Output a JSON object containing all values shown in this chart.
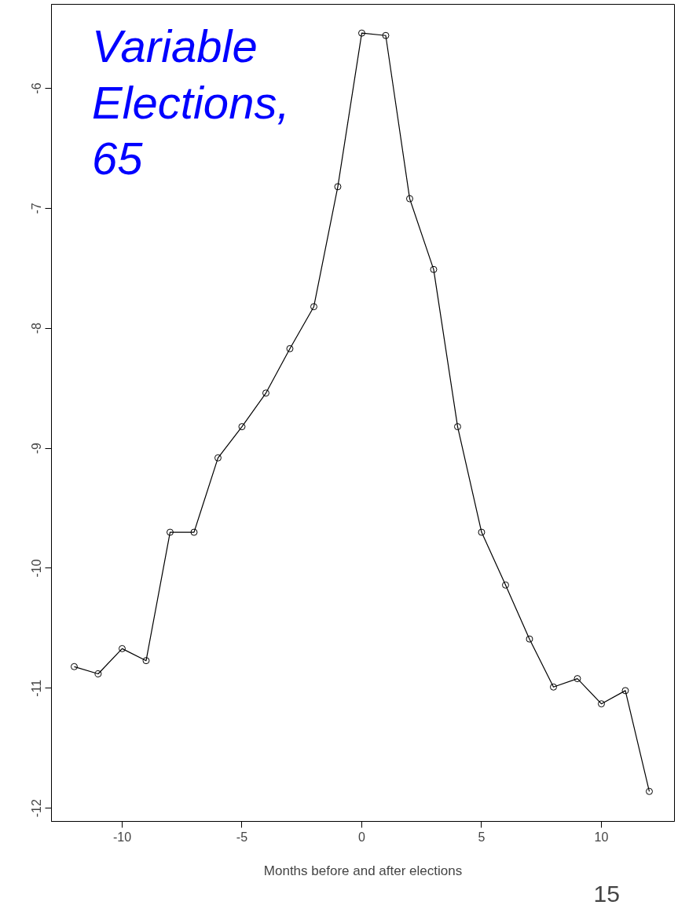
{
  "chart_data": {
    "type": "line",
    "title": "Variable Elections, 65",
    "xlabel": "Months before and after elections",
    "x": [
      -12,
      -11,
      -10,
      -9,
      -8,
      -7,
      -6,
      -5,
      -4,
      -3,
      -2,
      -1,
      0,
      1,
      2,
      3,
      4,
      5,
      6,
      7,
      8,
      9,
      10,
      11,
      12
    ],
    "series": [
      {
        "color": "#000000",
        "values": [
          -10.82,
          -10.88,
          -10.67,
          -10.77,
          -9.7,
          -9.7,
          -9.08,
          -8.82,
          -8.54,
          -8.17,
          -7.82,
          -6.82,
          -5.54,
          -5.56,
          -6.92,
          -7.51,
          -8.82,
          -9.7,
          -10.14,
          -10.59,
          -10.99,
          -10.92,
          -11.13,
          -11.02,
          -11.86
        ]
      }
    ],
    "xlim": [
      -12.95,
      13.05
    ],
    "ylim": [
      -12.11,
      -5.3
    ],
    "xticks": [
      -10,
      -5,
      0,
      5,
      10
    ],
    "yticks": [
      -12,
      -11,
      -10,
      -9,
      -8,
      -7,
      -6
    ],
    "marker": "circle",
    "line_style": "solid",
    "grid": false,
    "annotations": [
      "15"
    ]
  }
}
